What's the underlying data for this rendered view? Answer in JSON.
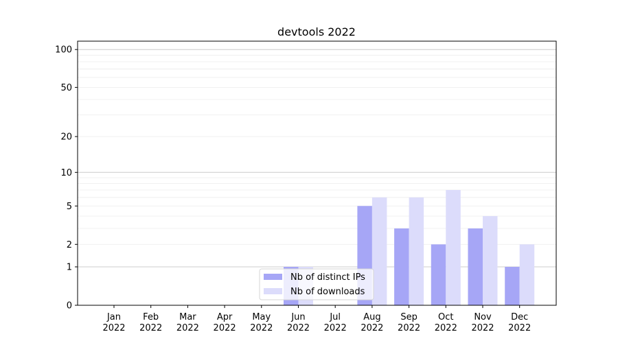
{
  "chart_data": {
    "type": "bar",
    "title": "devtools 2022",
    "xlabel": "",
    "ylabel": "",
    "yscale": "symlog (log10(1+y))",
    "ylim": [
      0,
      116
    ],
    "yticks": [
      0,
      1,
      2,
      5,
      10,
      20,
      50,
      100
    ],
    "grid": true,
    "legend_placement": "lower-center",
    "categories": [
      "Jan\n2022",
      "Feb\n2022",
      "Mar\n2022",
      "Apr\n2022",
      "May\n2022",
      "Jun\n2022",
      "Jul\n2022",
      "Aug\n2022",
      "Sep\n2022",
      "Oct\n2022",
      "Nov\n2022",
      "Dec\n2022"
    ],
    "series": [
      {
        "name": "Nb of distinct IPs",
        "color": "#a6a6f6",
        "values": [
          0,
          0,
          0,
          0,
          0,
          1,
          0,
          5,
          3,
          2,
          3,
          1
        ]
      },
      {
        "name": "Nb of downloads",
        "color": "#dcdcfb",
        "values": [
          0,
          0,
          0,
          0,
          0,
          1,
          0,
          6,
          6,
          7,
          4,
          2
        ]
      }
    ]
  }
}
